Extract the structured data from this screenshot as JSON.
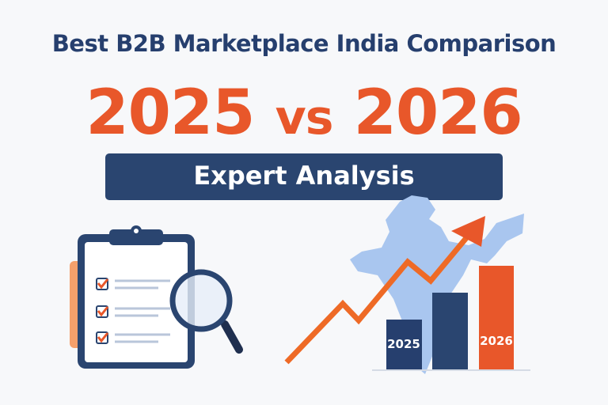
{
  "header": {
    "title": "Best B2B Marketplace India Comparison",
    "year_left": "2025",
    "vs": "vs",
    "year_right": "2026",
    "banner": "Expert Analysis"
  },
  "chart_graphic": {
    "bar_labels": [
      "2025",
      "",
      "2026"
    ],
    "bar_colors": [
      "#263f6e",
      "#2a4570",
      "#e8572a"
    ]
  },
  "colors": {
    "navy": "#263f6e",
    "orange": "#e8572a",
    "map_blue": "#a9c6ef"
  },
  "icons": [
    "clipboard-checklist-icon",
    "magnifying-glass-icon",
    "india-map-icon",
    "trend-arrow-icon"
  ]
}
